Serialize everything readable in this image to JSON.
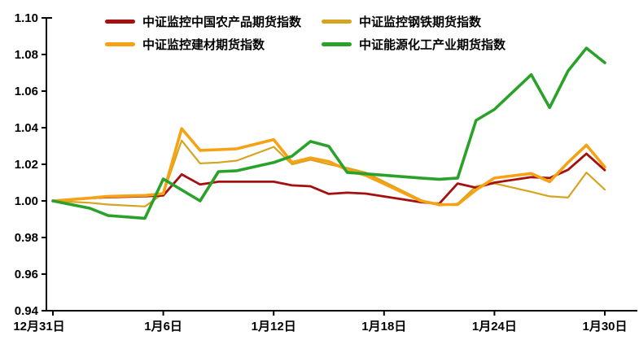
{
  "chart_data": {
    "type": "line",
    "title": "",
    "x_axis": {
      "tick_labels": [
        "12月31日",
        "1月6日",
        "1月12日",
        "1月18日",
        "1月24日",
        "1月30日"
      ],
      "tick_days": [
        0,
        6,
        12,
        18,
        24,
        30
      ],
      "range_days": [
        0,
        30.7
      ],
      "unit": "calendar days from 12月31日"
    },
    "y_axis": {
      "tick_labels": [
        "0.94",
        "0.96",
        "0.98",
        "1.00",
        "1.02",
        "1.04",
        "1.06",
        "1.08",
        "1.10"
      ],
      "ticks": [
        0.94,
        0.96,
        0.98,
        1.0,
        1.02,
        1.04,
        1.06,
        1.08,
        1.1
      ],
      "range": [
        0.94,
        1.1
      ]
    },
    "grid": false,
    "legend_position": "top",
    "axis_color": "#000000",
    "series": [
      {
        "key": "agri-products",
        "name": "中证监控中国农产品期货指数",
        "color": "#A3100F",
        "width": 2.8,
        "points": [
          [
            0,
            1.0
          ],
          [
            2,
            1.0015
          ],
          [
            3,
            1.002
          ],
          [
            5,
            1.0025
          ],
          [
            6,
            1.003
          ],
          [
            7,
            1.0145
          ],
          [
            8,
            1.009
          ],
          [
            9,
            1.0105
          ],
          [
            10,
            1.0105
          ],
          [
            12,
            1.0105
          ],
          [
            13,
            1.0085
          ],
          [
            14,
            1.008
          ],
          [
            15,
            1.0038
          ],
          [
            16,
            1.0045
          ],
          [
            17,
            1.004
          ],
          [
            20,
            0.9993
          ],
          [
            21,
            0.9985
          ],
          [
            22,
            1.0095
          ],
          [
            23,
            1.0072
          ],
          [
            24,
            1.01
          ],
          [
            26,
            1.013
          ],
          [
            27,
            1.0125
          ],
          [
            28,
            1.017
          ],
          [
            29,
            1.0258
          ],
          [
            30,
            1.0168
          ]
        ]
      },
      {
        "key": "steel",
        "name": "中证监控钢铁期货指数",
        "color": "#D5A421",
        "width": 2.2,
        "points": [
          [
            0,
            1.0
          ],
          [
            2,
            0.999
          ],
          [
            3,
            0.998
          ],
          [
            5,
            0.997
          ],
          [
            6,
            1.004
          ],
          [
            7,
            1.033
          ],
          [
            8,
            1.0205
          ],
          [
            9,
            1.021
          ],
          [
            10,
            1.022
          ],
          [
            12,
            1.0295
          ],
          [
            13,
            1.02
          ],
          [
            14,
            1.0225
          ],
          [
            15,
            1.02
          ],
          [
            16,
            1.018
          ],
          [
            17,
            1.0155
          ],
          [
            20,
            1.0005
          ],
          [
            21,
            0.9975
          ],
          [
            22,
            0.9985
          ],
          [
            23,
            1.008
          ],
          [
            24,
            1.0095
          ],
          [
            26,
            1.005
          ],
          [
            27,
            1.0025
          ],
          [
            28,
            1.0018
          ],
          [
            29,
            1.0155
          ],
          [
            30,
            1.0062
          ]
        ]
      },
      {
        "key": "building-materials",
        "name": "中证监控建材期货指数",
        "color": "#F7A215",
        "width": 3.6,
        "points": [
          [
            0,
            1.0
          ],
          [
            2,
            1.0015
          ],
          [
            3,
            1.0025
          ],
          [
            5,
            1.003
          ],
          [
            6,
            1.004
          ],
          [
            7,
            1.0395
          ],
          [
            8,
            1.0276
          ],
          [
            9,
            1.028
          ],
          [
            10,
            1.0285
          ],
          [
            12,
            1.0335
          ],
          [
            13,
            1.021
          ],
          [
            14,
            1.0235
          ],
          [
            15,
            1.0215
          ],
          [
            16,
            1.017
          ],
          [
            17,
            1.014
          ],
          [
            20,
            1.0
          ],
          [
            21,
            0.998
          ],
          [
            22,
            0.998
          ],
          [
            23,
            1.006
          ],
          [
            24,
            1.0125
          ],
          [
            26,
            1.015
          ],
          [
            27,
            1.0105
          ],
          [
            28,
            1.021
          ],
          [
            29,
            1.0305
          ],
          [
            30,
            1.0185
          ]
        ]
      },
      {
        "key": "energy-chemical",
        "name": "中证能源化工产业期货指数",
        "color": "#2AA22A",
        "width": 3.6,
        "points": [
          [
            0,
            1.0
          ],
          [
            2,
            0.996
          ],
          [
            3,
            0.992
          ],
          [
            5,
            0.9905
          ],
          [
            6,
            1.012
          ],
          [
            7,
            1.006
          ],
          [
            8,
            1.0
          ],
          [
            9,
            1.016
          ],
          [
            10,
            1.0165
          ],
          [
            12,
            1.021
          ],
          [
            13,
            1.0245
          ],
          [
            14,
            1.0325
          ],
          [
            15,
            1.0298
          ],
          [
            16,
            1.0155
          ],
          [
            17,
            1.0148
          ],
          [
            20,
            1.0125
          ],
          [
            21,
            1.0118
          ],
          [
            22,
            1.0125
          ],
          [
            23,
            1.044
          ],
          [
            24,
            1.05
          ],
          [
            26,
            1.069
          ],
          [
            27,
            1.051
          ],
          [
            28,
            1.071
          ],
          [
            29,
            1.0835
          ],
          [
            30,
            1.0755
          ]
        ]
      }
    ]
  }
}
